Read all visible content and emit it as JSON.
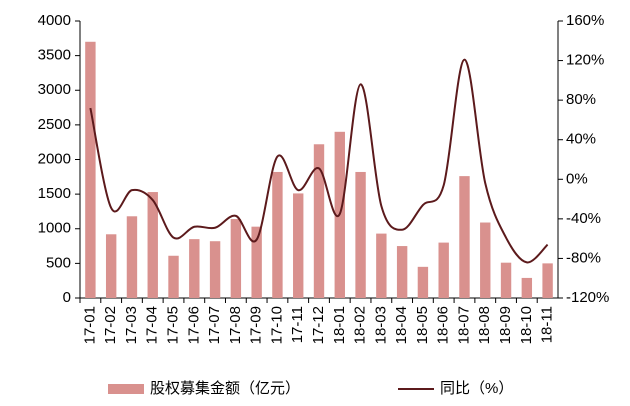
{
  "chart_data": {
    "type": "bar_line",
    "categories": [
      "17-01",
      "17-02",
      "17-03",
      "17-04",
      "17-05",
      "17-06",
      "17-07",
      "17-08",
      "17-09",
      "17-10",
      "17-11",
      "17-12",
      "18-01",
      "18-02",
      "18-03",
      "18-04",
      "18-05",
      "18-06",
      "18-07",
      "18-08",
      "18-09",
      "18-10",
      "18-11"
    ],
    "series": [
      {
        "name": "股权募集金额（亿元）",
        "type": "bar",
        "color": "#d9918e",
        "axis": "y",
        "values": [
          3700,
          920,
          1180,
          1530,
          610,
          850,
          820,
          1140,
          1030,
          1820,
          1510,
          2220,
          2400,
          1820,
          930,
          750,
          450,
          800,
          1760,
          1090,
          510,
          290,
          500
        ]
      },
      {
        "name": "同比（%）",
        "type": "line",
        "color": "#5c1a1c",
        "axis": "y2",
        "values": [
          72,
          -29,
          -11,
          -21,
          -59,
          -48,
          -49,
          -37,
          -61,
          23,
          -11,
          11,
          -35,
          96,
          -27,
          -51,
          -26,
          -6,
          121,
          -4,
          -59,
          -84,
          -66
        ]
      }
    ],
    "ylim": [
      0,
      4000
    ],
    "yticks": [
      0,
      500,
      1000,
      1500,
      2000,
      2500,
      3000,
      3500,
      4000
    ],
    "y2lim": [
      -120,
      160
    ],
    "y2ticks": [
      {
        "value": -120,
        "label": "-120%"
      },
      {
        "value": -80,
        "label": "-80%"
      },
      {
        "value": -40,
        "label": "-40%"
      },
      {
        "value": 0,
        "label": "0%"
      },
      {
        "value": 40,
        "label": "40%"
      },
      {
        "value": 80,
        "label": "80%"
      },
      {
        "value": 120,
        "label": "120%"
      },
      {
        "value": 160,
        "label": "160%"
      }
    ],
    "legend": "bottom",
    "grid": false
  }
}
